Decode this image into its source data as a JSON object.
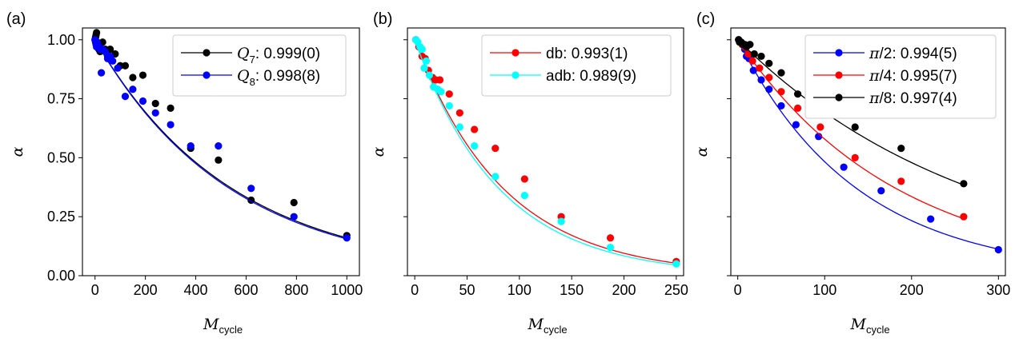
{
  "chart_data": [
    {
      "type": "scatter",
      "panel_label": "(a)",
      "xlabel_main": "M",
      "xlabel_sub": "cycle",
      "ylabel": "α",
      "xlim": [
        -50,
        1050
      ],
      "ylim": [
        0,
        1.05
      ],
      "xticks": [
        0,
        200,
        400,
        600,
        800,
        1000
      ],
      "xtick_labels": [
        "0",
        "200",
        "400",
        "600",
        "800",
        "1000"
      ],
      "yticks": [
        0,
        0.25,
        0.5,
        0.75,
        1.0
      ],
      "ytick_labels": [
        "0.00",
        "0.25",
        "0.50",
        "0.75",
        "1.00"
      ],
      "show_ytick_labels": true,
      "legend_position": "top-right",
      "series": [
        {
          "name": "Q7",
          "legend_main": "Q",
          "legend_sub": "7",
          "legend_value": ": 0.999(0)",
          "color": "#000000",
          "fit_base": 0.99817,
          "fit_A": 1.0,
          "x": [
            0,
            2,
            4,
            6,
            8,
            10,
            15,
            20,
            30,
            40,
            50,
            60,
            80,
            100,
            120,
            150,
            190,
            240,
            300,
            380,
            490,
            620,
            790,
            1000
          ],
          "y": [
            1.0,
            1.01,
            1.02,
            1.03,
            0.99,
            0.98,
            0.96,
            0.95,
            0.99,
            0.96,
            0.93,
            0.96,
            0.94,
            0.89,
            0.89,
            0.84,
            0.85,
            0.73,
            0.71,
            0.54,
            0.49,
            0.32,
            0.31,
            0.17
          ]
        },
        {
          "name": "Q8",
          "legend_main": "Q",
          "legend_sub": "8",
          "legend_value": ": 0.998(8)",
          "color": "#0000ff",
          "fit_base": 0.99814,
          "fit_A": 1.0,
          "x": [
            0,
            2,
            4,
            6,
            8,
            10,
            15,
            20,
            25,
            30,
            40,
            50,
            60,
            70,
            90,
            120,
            150,
            190,
            240,
            300,
            380,
            490,
            620,
            790,
            1000
          ],
          "y": [
            1.0,
            0.99,
            0.98,
            0.97,
            0.99,
            0.98,
            0.97,
            0.96,
            0.86,
            0.96,
            0.95,
            0.92,
            0.93,
            0.91,
            0.88,
            0.76,
            0.79,
            0.74,
            0.69,
            0.64,
            0.55,
            0.55,
            0.37,
            0.25,
            0.16
          ]
        }
      ]
    },
    {
      "type": "scatter",
      "panel_label": "(b)",
      "xlabel_main": "M",
      "xlabel_sub": "cycle",
      "ylabel": "α",
      "xlim": [
        -7,
        257
      ],
      "ylim": [
        0,
        1.05
      ],
      "xticks": [
        0,
        50,
        100,
        150,
        200,
        250
      ],
      "xtick_labels": [
        "0",
        "50",
        "100",
        "150",
        "200",
        "250"
      ],
      "yticks": [
        0,
        0.25,
        0.5,
        0.75,
        1.0
      ],
      "ytick_labels": [
        "0.00",
        "0.25",
        "0.50",
        "0.75",
        "1.00"
      ],
      "show_ytick_labels": false,
      "legend_position": "top-right",
      "series": [
        {
          "name": "db",
          "legend_main": "",
          "legend_sub": "",
          "legend_value": "db: 0.993(1)",
          "color": "#ff0000",
          "fit_base": 0.9883,
          "fit_A": 1.0,
          "x": [
            1,
            4,
            7,
            10,
            13,
            17,
            20,
            24,
            33,
            43,
            57,
            77,
            105,
            140,
            187,
            250
          ],
          "y": [
            1.0,
            0.97,
            0.93,
            0.92,
            0.87,
            0.84,
            0.83,
            0.83,
            0.77,
            0.69,
            0.62,
            0.54,
            0.41,
            0.25,
            0.16,
            0.06
          ]
        },
        {
          "name": "adb",
          "legend_main": "",
          "legend_sub": "",
          "legend_value": "adb: 0.989(9)",
          "color": "#00ffff",
          "fit_base": 0.9877,
          "fit_A": 1.0,
          "x": [
            1,
            3,
            5,
            7,
            9,
            11,
            14,
            18,
            22,
            25,
            33,
            43,
            57,
            77,
            105,
            140,
            187,
            250
          ],
          "y": [
            1.0,
            0.99,
            0.97,
            0.96,
            0.88,
            0.91,
            0.85,
            0.8,
            0.79,
            0.78,
            0.72,
            0.63,
            0.55,
            0.42,
            0.34,
            0.23,
            0.12,
            0.05
          ]
        }
      ]
    },
    {
      "type": "scatter",
      "panel_label": "(c)",
      "xlabel_main": "M",
      "xlabel_sub": "cycle",
      "ylabel": "α",
      "xlim": [
        -8,
        308
      ],
      "ylim": [
        0,
        1.05
      ],
      "xticks": [
        0,
        100,
        200,
        300
      ],
      "xtick_labels": [
        "0",
        "100",
        "200",
        "300"
      ],
      "yticks": [
        0,
        0.25,
        0.5,
        0.75,
        1.0
      ],
      "ytick_labels": [
        "0.00",
        "0.25",
        "0.50",
        "0.75",
        "1.00"
      ],
      "show_ytick_labels": false,
      "legend_position": "top-right",
      "series": [
        {
          "name": "pi/2",
          "legend_main": "π",
          "legend_sub": "",
          "legend_value": "/2: 0.994(5)",
          "color": "#0000ff",
          "fit_base": 0.99275,
          "fit_A": 1.0,
          "x": [
            1,
            3,
            5,
            8,
            10,
            13,
            18,
            27,
            36,
            50,
            67,
            93,
            122,
            165,
            222,
            300
          ],
          "y": [
            1.0,
            0.99,
            0.98,
            0.96,
            0.93,
            0.92,
            0.87,
            0.83,
            0.79,
            0.72,
            0.64,
            0.59,
            0.46,
            0.36,
            0.24,
            0.11
          ]
        },
        {
          "name": "pi/4",
          "legend_main": "π",
          "legend_sub": "",
          "legend_value": "/4: 0.995(7)",
          "color": "#ff0000",
          "fit_base": 0.99455,
          "fit_A": 1.0,
          "x": [
            1,
            3,
            5,
            8,
            12,
            17,
            25,
            36,
            50,
            69,
            95,
            135,
            188,
            260
          ],
          "y": [
            1.0,
            0.99,
            0.98,
            0.97,
            0.94,
            0.91,
            0.88,
            0.84,
            0.78,
            0.71,
            0.63,
            0.5,
            0.4,
            0.25
          ]
        },
        {
          "name": "pi/8",
          "legend_main": "π",
          "legend_sub": "",
          "legend_value": "/8: 0.997(4)",
          "color": "#000000",
          "fit_base": 0.99633,
          "fit_A": 1.0,
          "x": [
            1,
            2,
            4,
            6,
            8,
            10,
            14,
            19,
            27,
            36,
            50,
            69,
            97,
            135,
            188,
            260
          ],
          "y": [
            1.0,
            0.99,
            0.99,
            0.98,
            0.98,
            0.97,
            0.98,
            0.94,
            0.93,
            0.9,
            0.86,
            0.77,
            0.74,
            0.63,
            0.54,
            0.39
          ]
        }
      ]
    }
  ]
}
